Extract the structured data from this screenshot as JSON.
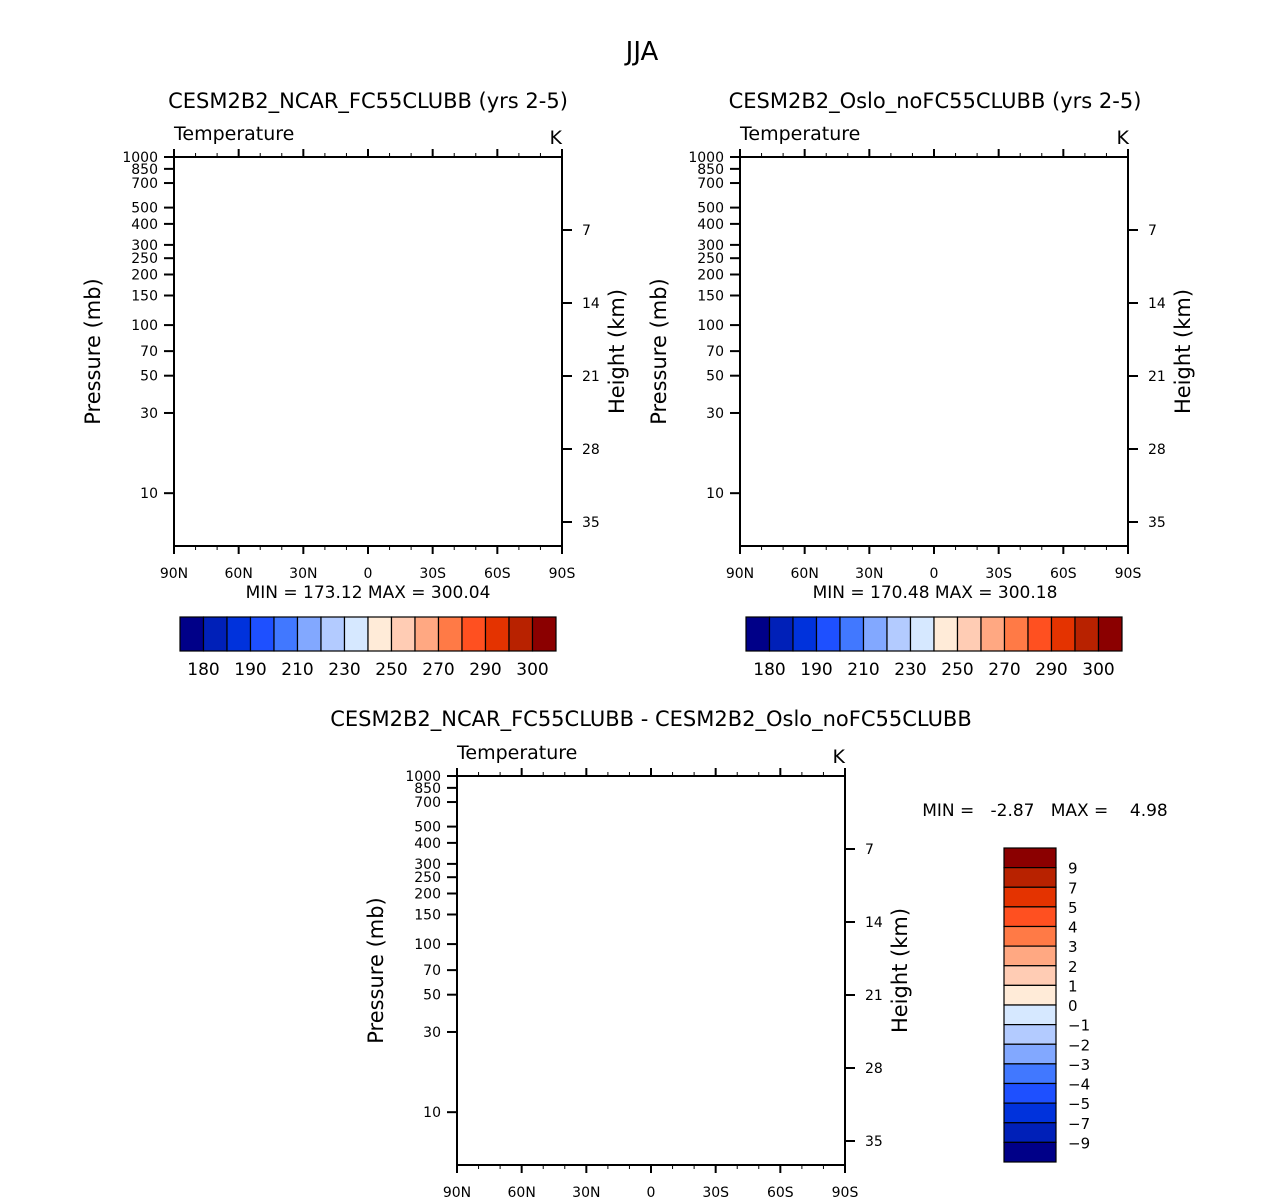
{
  "figure_title": "JJA",
  "colors": {
    "temperature_palette": [
      "#000088",
      "#0020B8",
      "#0032DC",
      "#1E50FF",
      "#4178FF",
      "#82A8FF",
      "#B3CBFF",
      "#D6E8FF",
      "#FFEBD8",
      "#FFCCB4",
      "#FFA882",
      "#FF7A46",
      "#FF5020",
      "#E43300",
      "#B82200",
      "#8B0000"
    ],
    "missing": "#FFFFFF",
    "frame": "#000000"
  },
  "chart_data": [
    {
      "type": "heatmap",
      "subtype": "filled-contour latitude-pressure cross section",
      "title": "CESM2B2_NCAR_FC55CLUBB (yrs 2-5)",
      "left_string": "Temperature",
      "right_string": "K",
      "xlabel": "",
      "ylabel": "Pressure (mb)",
      "ylabel_right": "Height (km)",
      "x_ticks": [
        "90N",
        "60N",
        "30N",
        "0",
        "30S",
        "60S",
        "90S"
      ],
      "x_range": [
        90,
        -90
      ],
      "y_ticks": [
        "10",
        "30",
        "50",
        "70",
        "100",
        "150",
        "200",
        "250",
        "300",
        "400",
        "500",
        "700",
        "850",
        "1000"
      ],
      "y_scale": "log",
      "y_range_mb": [
        1000,
        5
      ],
      "y_right_ticks": [
        "35",
        "28",
        "21",
        "14",
        "7"
      ],
      "stats": "MIN = 173.12   MAX = 300.04",
      "min": 173.12,
      "max": 300.04,
      "colorbar": {
        "orientation": "horizontal",
        "levels": [
          180,
          185,
          190,
          200,
          210,
          220,
          230,
          240,
          250,
          260,
          270,
          280,
          290,
          295,
          300
        ],
        "labels": [
          "180",
          "190",
          "210",
          "230",
          "250",
          "270",
          "290",
          "300"
        ]
      }
    },
    {
      "type": "heatmap",
      "subtype": "filled-contour latitude-pressure cross section",
      "title": "CESM2B2_Oslo_noFC55CLUBB (yrs 2-5)",
      "left_string": "Temperature",
      "right_string": "K",
      "xlabel": "",
      "ylabel": "Pressure (mb)",
      "ylabel_right": "Height (km)",
      "x_ticks": [
        "90N",
        "60N",
        "30N",
        "0",
        "30S",
        "60S",
        "90S"
      ],
      "x_range": [
        90,
        -90
      ],
      "y_ticks": [
        "10",
        "30",
        "50",
        "70",
        "100",
        "150",
        "200",
        "250",
        "300",
        "400",
        "500",
        "700",
        "850",
        "1000"
      ],
      "y_scale": "log",
      "y_range_mb": [
        1000,
        5
      ],
      "y_right_ticks": [
        "35",
        "28",
        "21",
        "14",
        "7"
      ],
      "stats": "MIN = 170.48   MAX = 300.18",
      "min": 170.48,
      "max": 300.18,
      "colorbar": {
        "orientation": "horizontal",
        "levels": [
          180,
          185,
          190,
          200,
          210,
          220,
          230,
          240,
          250,
          260,
          270,
          280,
          290,
          295,
          300
        ],
        "labels": [
          "180",
          "190",
          "210",
          "230",
          "250",
          "270",
          "290",
          "300"
        ]
      }
    },
    {
      "type": "heatmap",
      "subtype": "filled-contour latitude-pressure difference",
      "title": "CESM2B2_NCAR_FC55CLUBB - CESM2B2_Oslo_noFC55CLUBB",
      "left_string": "Temperature",
      "right_string": "K",
      "xlabel": "",
      "ylabel": "Pressure (mb)",
      "ylabel_right": "Height (km)",
      "x_ticks": [
        "90N",
        "60N",
        "30N",
        "0",
        "30S",
        "60S",
        "90S"
      ],
      "x_range": [
        90,
        -90
      ],
      "y_ticks": [
        "10",
        "30",
        "50",
        "70",
        "100",
        "150",
        "200",
        "250",
        "300",
        "400",
        "500",
        "700",
        "850",
        "1000"
      ],
      "y_scale": "log",
      "y_range_mb": [
        1000,
        5
      ],
      "y_right_ticks": [
        "35",
        "28",
        "21",
        "14",
        "7"
      ],
      "stats": "MIN =   -2.87   MAX =    4.98",
      "min": -2.87,
      "max": 4.98,
      "colorbar": {
        "orientation": "vertical",
        "levels": [
          -9,
          -7,
          -5,
          -4,
          -3,
          -2,
          -1,
          0,
          1,
          2,
          3,
          4,
          5,
          7,
          9
        ],
        "labels": [
          "9",
          "7",
          "5",
          "4",
          "3",
          "2",
          "1",
          "0",
          "-1",
          "-2",
          "-3",
          "-4",
          "-5",
          "-7",
          "-9"
        ]
      }
    }
  ]
}
